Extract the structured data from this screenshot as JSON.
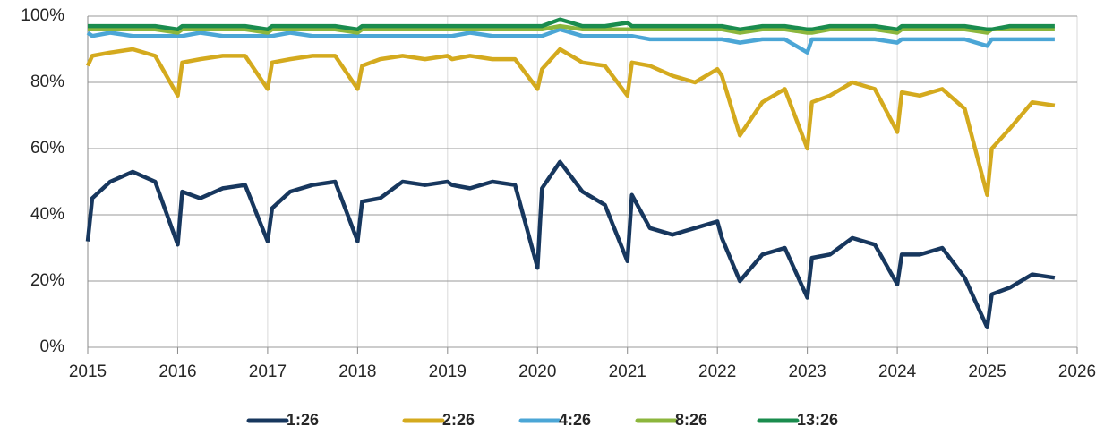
{
  "chart_data": {
    "type": "line",
    "x": [
      2015.0,
      2015.05,
      2015.25,
      2015.5,
      2015.75,
      2016.0,
      2016.05,
      2016.25,
      2016.5,
      2016.75,
      2017.0,
      2017.05,
      2017.25,
      2017.5,
      2017.75,
      2018.0,
      2018.05,
      2018.25,
      2018.5,
      2018.75,
      2019.0,
      2019.05,
      2019.25,
      2019.5,
      2019.75,
      2020.0,
      2020.05,
      2020.25,
      2020.5,
      2020.75,
      2021.0,
      2021.05,
      2021.25,
      2021.5,
      2021.75,
      2022.0,
      2022.05,
      2022.25,
      2022.5,
      2022.75,
      2023.0,
      2023.05,
      2023.25,
      2023.5,
      2023.75,
      2024.0,
      2024.05,
      2024.25,
      2024.5,
      2024.75,
      2025.0,
      2025.05,
      2025.25,
      2025.5,
      2025.75
    ],
    "series": [
      {
        "name": "1:26",
        "color": "#17375e",
        "values": [
          32,
          45,
          50,
          53,
          50,
          31,
          47,
          45,
          48,
          49,
          32,
          42,
          47,
          49,
          50,
          32,
          44,
          45,
          50,
          49,
          50,
          49,
          48,
          50,
          49,
          24,
          48,
          56,
          47,
          43,
          26,
          46,
          36,
          34,
          36,
          38,
          33,
          20,
          28,
          30,
          15,
          27,
          28,
          33,
          31,
          19,
          28,
          28,
          30,
          21,
          6,
          16,
          18,
          22,
          21
        ]
      },
      {
        "name": "2:26",
        "color": "#d4aa1e",
        "values": [
          85,
          88,
          89,
          90,
          88,
          76,
          86,
          87,
          88,
          88,
          78,
          86,
          87,
          88,
          88,
          78,
          85,
          87,
          88,
          87,
          88,
          87,
          88,
          87,
          87,
          78,
          84,
          90,
          86,
          85,
          76,
          86,
          85,
          82,
          80,
          84,
          82,
          64,
          74,
          78,
          60,
          74,
          76,
          80,
          78,
          65,
          77,
          76,
          78,
          72,
          46,
          60,
          66,
          74,
          73
        ]
      },
      {
        "name": "4:26",
        "color": "#4ba6d6",
        "values": [
          95,
          94,
          95,
          94,
          94,
          94,
          94,
          95,
          94,
          94,
          94,
          94,
          95,
          94,
          94,
          94,
          94,
          94,
          94,
          94,
          94,
          94,
          95,
          94,
          94,
          94,
          94,
          96,
          94,
          94,
          94,
          94,
          93,
          93,
          93,
          93,
          93,
          92,
          93,
          93,
          89,
          93,
          93,
          93,
          93,
          92,
          93,
          93,
          93,
          93,
          91,
          93,
          93,
          93,
          93
        ]
      },
      {
        "name": "8:26",
        "color": "#8cb63c",
        "values": [
          96,
          96,
          96,
          96,
          96,
          95,
          96,
          96,
          96,
          96,
          95,
          96,
          96,
          96,
          96,
          95,
          96,
          96,
          96,
          96,
          96,
          96,
          96,
          96,
          96,
          96,
          96,
          97,
          96,
          96,
          96,
          96,
          96,
          96,
          96,
          96,
          96,
          95,
          96,
          96,
          95,
          95,
          96,
          96,
          96,
          95,
          96,
          96,
          96,
          96,
          95,
          96,
          96,
          96,
          96
        ]
      },
      {
        "name": "13:26",
        "color": "#1a8c4e",
        "values": [
          97,
          97,
          97,
          97,
          97,
          96,
          97,
          97,
          97,
          97,
          96,
          97,
          97,
          97,
          97,
          96,
          97,
          97,
          97,
          97,
          97,
          97,
          97,
          97,
          97,
          97,
          97,
          99,
          97,
          97,
          98,
          97,
          97,
          97,
          97,
          97,
          97,
          96,
          97,
          97,
          96,
          96,
          97,
          97,
          97,
          96,
          97,
          97,
          97,
          97,
          96,
          96,
          97,
          97,
          97
        ]
      }
    ],
    "xlim": [
      2015,
      2026
    ],
    "xticks": [
      2015,
      2016,
      2017,
      2018,
      2019,
      2020,
      2021,
      2022,
      2023,
      2024,
      2025,
      2026
    ],
    "ylim": [
      0,
      100
    ],
    "yticks": [
      {
        "value": 0,
        "label": "0%"
      },
      {
        "value": 20,
        "label": "20%"
      },
      {
        "value": 40,
        "label": "40%"
      },
      {
        "value": 60,
        "label": "60%"
      },
      {
        "value": 80,
        "label": "80%"
      },
      {
        "value": 100,
        "label": "100%"
      }
    ],
    "grid": true,
    "legend": "bottom"
  }
}
